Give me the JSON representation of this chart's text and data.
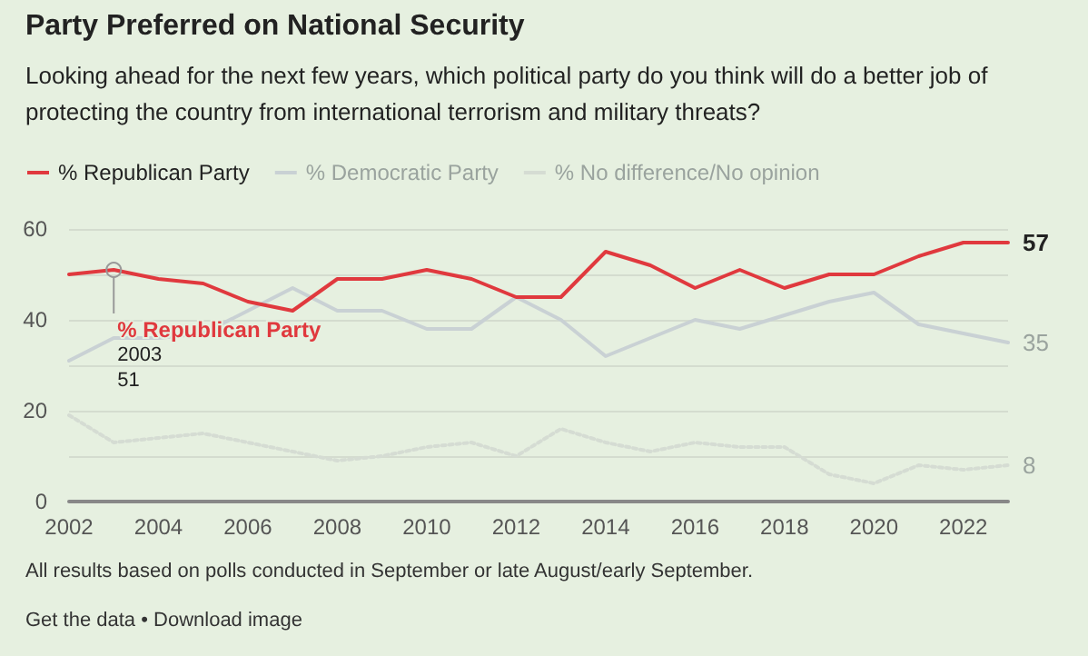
{
  "chart_data": {
    "type": "line",
    "title": "Party Preferred on National Security",
    "subtitle": "Looking ahead for the next few years, which political party do you think will do a better job of protecting the country from international terrorism and military threats?",
    "x": [
      2002,
      2003,
      2004,
      2005,
      2006,
      2007,
      2008,
      2009,
      2010,
      2011,
      2012,
      2013,
      2014,
      2015,
      2016,
      2017,
      2018,
      2019,
      2020,
      2021,
      2022,
      2023
    ],
    "series": [
      {
        "name": "% Republican Party",
        "color": "#e0393e",
        "line_style": "solid",
        "values": [
          50,
          51,
          49,
          48,
          44,
          42,
          49,
          49,
          51,
          49,
          45,
          45,
          55,
          52,
          47,
          51,
          47,
          50,
          50,
          54,
          57,
          57
        ],
        "value_labels": [
          null,
          null,
          null,
          null,
          null,
          null,
          null,
          null,
          null,
          null,
          null,
          null,
          null,
          null,
          null,
          null,
          null,
          null,
          null,
          null,
          null,
          "57"
        ]
      },
      {
        "name": "% Democratic Party",
        "color": "#c9d1d4",
        "line_style": "solid",
        "values": [
          31,
          36,
          36,
          37,
          42,
          47,
          42,
          42,
          38,
          38,
          45,
          40,
          32,
          36,
          40,
          38,
          41,
          44,
          46,
          39,
          37,
          35
        ],
        "value_labels": [
          null,
          null,
          null,
          null,
          null,
          null,
          null,
          null,
          null,
          null,
          null,
          null,
          null,
          null,
          null,
          null,
          null,
          null,
          null,
          null,
          null,
          "35"
        ]
      },
      {
        "name": "% No difference/No opinion",
        "color": "#d5dcd3",
        "line_style": "dotted",
        "values": [
          19,
          13,
          14,
          15,
          13,
          11,
          9,
          10,
          12,
          13,
          10,
          16,
          13,
          11,
          13,
          12,
          12,
          6,
          4,
          8,
          7,
          8
        ],
        "value_labels": [
          null,
          null,
          null,
          null,
          null,
          null,
          null,
          null,
          null,
          null,
          null,
          null,
          null,
          null,
          null,
          null,
          null,
          null,
          null,
          null,
          null,
          "8"
        ]
      }
    ],
    "xlim": [
      2002,
      2023
    ],
    "xticks": [
      2002,
      2004,
      2006,
      2008,
      2010,
      2012,
      2014,
      2016,
      2018,
      2020,
      2022
    ],
    "ylim": [
      0,
      60
    ],
    "yticks": [
      0,
      20,
      40,
      60
    ],
    "grid": "y",
    "legend": "top left",
    "marker": "none",
    "annotations": [
      {
        "text": "% Republican Party\n2003\n51",
        "x": 2003,
        "y": 51
      },
      "All results based on polls conducted in September or late August/early September.",
      "Get the data • Download image"
    ]
  }
}
